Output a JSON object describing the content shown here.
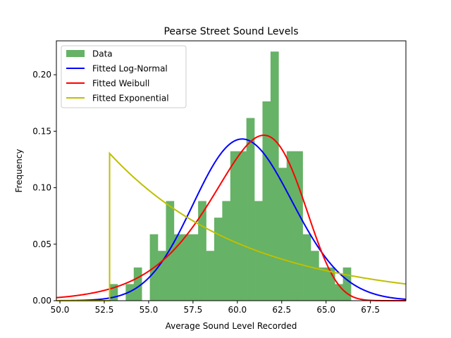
{
  "chart_data": {
    "type": "histogram",
    "title": "Pearse Street Sound Levels",
    "xlabel": "Average Sound Level Recorded",
    "ylabel": "Frequency",
    "xlim": [
      49.8,
      69.5
    ],
    "ylim": [
      0,
      0.23
    ],
    "x_ticks": [
      "50.0",
      "52.5",
      "55.0",
      "57.5",
      "60.0",
      "62.5",
      "65.0",
      "67.5"
    ],
    "x_tick_values": [
      50.0,
      52.5,
      55.0,
      57.5,
      60.0,
      62.5,
      65.0,
      67.5
    ],
    "y_ticks": [
      "0.00",
      "0.05",
      "0.10",
      "0.15",
      "0.20"
    ],
    "y_tick_values": [
      0.0,
      0.05,
      0.1,
      0.15,
      0.2
    ],
    "grid": false,
    "legend_position": "top-left",
    "histogram": {
      "name": "Data",
      "color": "#66b266",
      "bin_start": 52.8,
      "bin_width": 0.4535,
      "heights": [
        0.0147,
        0,
        0.0147,
        0.0294,
        0,
        0.0588,
        0.0441,
        0.0882,
        0.0588,
        0.0588,
        0.0588,
        0.0882,
        0.0441,
        0.0735,
        0.0882,
        0.1323,
        0.1323,
        0.1617,
        0.0882,
        0.1764,
        0.2205,
        0.1176,
        0.1323,
        0.1323,
        0.0588,
        0.0441,
        0.0294,
        0.0294,
        0.0147,
        0.0294
      ]
    },
    "series": [
      {
        "name": "Fitted Log-Normal",
        "color": "#0000ff",
        "dist": "lognormal",
        "params": {
          "loc": 0,
          "sigma": 0.0462,
          "scale": 60.4
        }
      },
      {
        "name": "Fitted Weibull",
        "color": "#ff0000",
        "dist": "weibull",
        "params": {
          "loc": 0,
          "shape": 24.5,
          "scale": 61.6
        }
      },
      {
        "name": "Fitted Exponential",
        "color": "#bfbf00",
        "dist": "exponential",
        "params": {
          "loc": 52.8,
          "scale": 7.67
        }
      }
    ]
  }
}
